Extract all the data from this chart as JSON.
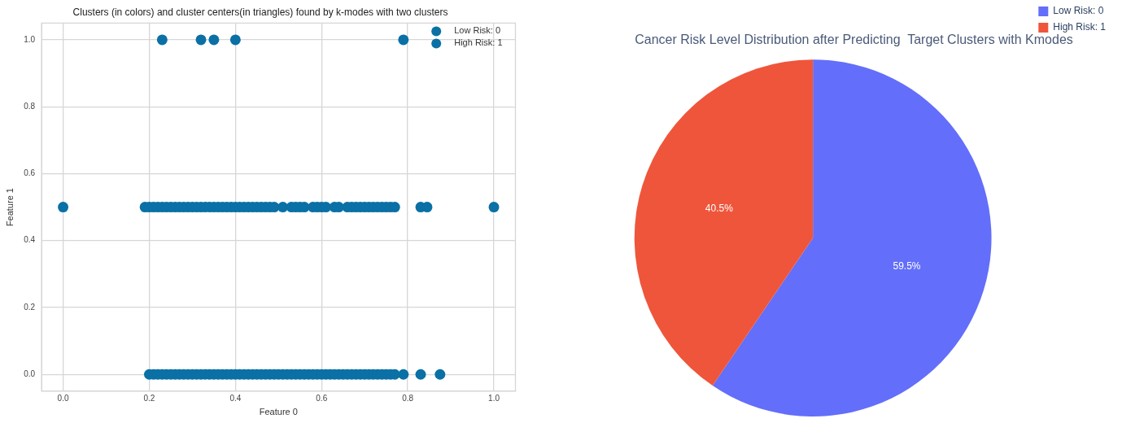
{
  "chart_data": [
    {
      "type": "scatter",
      "title": "Clusters (in colors) and cluster centers(in triangles) found by k-modes with two clusters",
      "xlabel": "Feature 0",
      "ylabel": "Feature 1",
      "xlim": [
        -0.05,
        1.05
      ],
      "ylim": [
        -0.05,
        1.05
      ],
      "xticks": [
        {
          "value": 0,
          "label": "0.0"
        },
        {
          "value": 0.2,
          "label": "0.2"
        },
        {
          "value": 0.4,
          "label": "0.4"
        },
        {
          "value": 0.6,
          "label": "0.6"
        },
        {
          "value": 0.8,
          "label": "0.8"
        },
        {
          "value": 1,
          "label": "1.0"
        }
      ],
      "yticks": [
        {
          "value": 0,
          "label": "0.0"
        },
        {
          "value": 0.2,
          "label": "0.2"
        },
        {
          "value": 0.4,
          "label": "0.4"
        },
        {
          "value": 0.6,
          "label": "0.6"
        },
        {
          "value": 0.8,
          "label": "0.8"
        },
        {
          "value": 1,
          "label": "1.0"
        }
      ],
      "grid": true,
      "legend": "top right",
      "marker": "circle",
      "series": [
        {
          "name": "Low Risk: 0",
          "color": "#0a70a5",
          "x": [
            0.2,
            0.21,
            0.22,
            0.23,
            0.24,
            0.25,
            0.26,
            0.27,
            0.28,
            0.29,
            0.3,
            0.31,
            0.32,
            0.33,
            0.34,
            0.35,
            0.36,
            0.37,
            0.38,
            0.39,
            0.4,
            0.41,
            0.42,
            0.43,
            0.44,
            0.45,
            0.46,
            0.47,
            0.48,
            0.49,
            0.5,
            0.51,
            0.52,
            0.53,
            0.54,
            0.55,
            0.56,
            0.57,
            0.58,
            0.59,
            0.6,
            0.61,
            0.62,
            0.63,
            0.64,
            0.65,
            0.66,
            0.67,
            0.68,
            0.69,
            0.7,
            0.71,
            0.72,
            0.73,
            0.74,
            0.75,
            0.76,
            0.77,
            0.79,
            0.83,
            0.875
          ],
          "values": [
            0,
            0,
            0,
            0,
            0,
            0,
            0,
            0,
            0,
            0,
            0,
            0,
            0,
            0,
            0,
            0,
            0,
            0,
            0,
            0,
            0,
            0,
            0,
            0,
            0,
            0,
            0,
            0,
            0,
            0,
            0,
            0,
            0,
            0,
            0,
            0,
            0,
            0,
            0,
            0,
            0,
            0,
            0,
            0,
            0,
            0,
            0,
            0,
            0,
            0,
            0,
            0,
            0,
            0,
            0,
            0,
            0,
            0,
            0,
            0,
            0
          ]
        },
        {
          "name": "High Risk: 1",
          "color": "#0a70a5",
          "x": [
            0.0,
            0.19,
            0.2,
            0.21,
            0.22,
            0.23,
            0.24,
            0.25,
            0.26,
            0.27,
            0.28,
            0.29,
            0.3,
            0.31,
            0.32,
            0.33,
            0.34,
            0.35,
            0.36,
            0.37,
            0.38,
            0.39,
            0.4,
            0.41,
            0.42,
            0.43,
            0.44,
            0.45,
            0.46,
            0.47,
            0.48,
            0.49,
            0.51,
            0.53,
            0.54,
            0.55,
            0.56,
            0.58,
            0.59,
            0.6,
            0.61,
            0.63,
            0.64,
            0.66,
            0.67,
            0.68,
            0.69,
            0.7,
            0.71,
            0.72,
            0.73,
            0.74,
            0.75,
            0.76,
            0.77,
            0.83,
            0.845,
            1.0,
            0.23,
            0.32,
            0.35,
            0.4,
            0.79
          ],
          "values": [
            0.5,
            0.5,
            0.5,
            0.5,
            0.5,
            0.5,
            0.5,
            0.5,
            0.5,
            0.5,
            0.5,
            0.5,
            0.5,
            0.5,
            0.5,
            0.5,
            0.5,
            0.5,
            0.5,
            0.5,
            0.5,
            0.5,
            0.5,
            0.5,
            0.5,
            0.5,
            0.5,
            0.5,
            0.5,
            0.5,
            0.5,
            0.5,
            0.5,
            0.5,
            0.5,
            0.5,
            0.5,
            0.5,
            0.5,
            0.5,
            0.5,
            0.5,
            0.5,
            0.5,
            0.5,
            0.5,
            0.5,
            0.5,
            0.5,
            0.5,
            0.5,
            0.5,
            0.5,
            0.5,
            0.5,
            0.5,
            0.5,
            0.5,
            1,
            1,
            1,
            1,
            1
          ]
        }
      ]
    },
    {
      "type": "pie",
      "title": "Cancer Risk Level Distribution after Predicting  Target Clusters with Kmodes",
      "categories": [
        "Low Risk: 0",
        "High Risk: 1"
      ],
      "values": [
        59.5,
        40.5
      ],
      "colors": [
        "#636efa",
        "#ef553b"
      ],
      "value_labels": [
        "59.5%",
        "40.5%"
      ],
      "legend": "top right"
    }
  ]
}
